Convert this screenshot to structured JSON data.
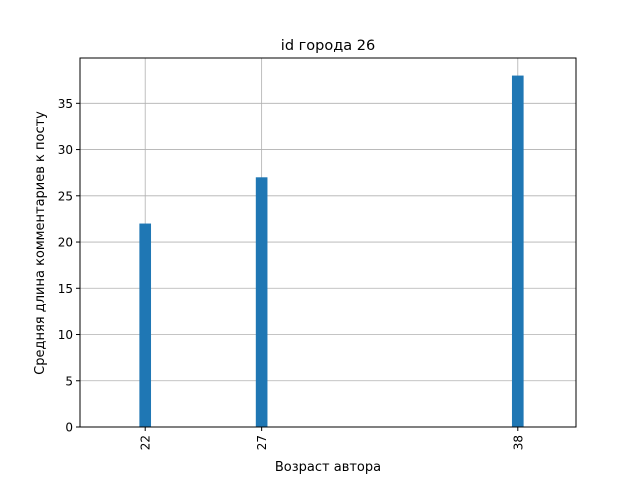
{
  "chart_data": {
    "type": "bar",
    "title": "id города 26",
    "xlabel": "Возраст автора",
    "ylabel": "Средняя длина комментариев к посту",
    "x": [
      22,
      27,
      38
    ],
    "x_tick_labels": [
      "22",
      "27",
      "38"
    ],
    "values": [
      22,
      27,
      38
    ],
    "xlim": [
      19.2,
      40.5
    ],
    "ylim": [
      0,
      39.9
    ],
    "yticks": [
      0,
      5,
      10,
      15,
      20,
      25,
      30,
      35
    ],
    "y_tick_labels": [
      "0",
      "5",
      "10",
      "15",
      "20",
      "25",
      "30",
      "35"
    ],
    "bar_width": 0.5,
    "grid": true,
    "legend": "none",
    "colors": {
      "bar": "#1f77b4",
      "grid": "#b0b0b0",
      "axis": "#000000"
    }
  }
}
